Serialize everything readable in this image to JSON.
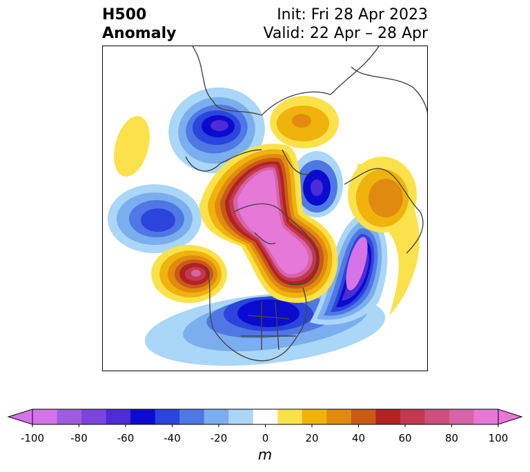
{
  "title": {
    "left_line1": "H500",
    "left_line2": "Anomaly",
    "right_line1": "Init: Fri 28 Apr 2023",
    "right_line2": "Valid: 22 Apr – 28 Apr"
  },
  "colorbar": {
    "units": "m",
    "extend": "both",
    "tick_labels": [
      "-100",
      "-80",
      "-60",
      "-40",
      "-20",
      "0",
      "20",
      "40",
      "60",
      "80",
      "100"
    ],
    "levels": [
      -100,
      -90,
      -80,
      -70,
      -60,
      -50,
      -40,
      -30,
      -20,
      -10,
      10,
      20,
      30,
      40,
      50,
      60,
      70,
      80,
      90,
      100
    ],
    "colors": [
      "#d574e8",
      "#a05ce0",
      "#7b45dc",
      "#4d2bd6",
      "#0b0bd0",
      "#2b44dc",
      "#4f78e4",
      "#7aaeef",
      "#aad6f8",
      "#ffffff",
      "#fce24a",
      "#f0b30c",
      "#e08b0f",
      "#c85a16",
      "#b22222",
      "#c23a50",
      "#cd4f7c",
      "#d763a8",
      "#e678d8"
    ],
    "under_color": "#d574e8",
    "over_color": "#e678d8"
  },
  "map": {
    "projection": "north-polar-stereographic",
    "region": "North America / Arctic"
  }
}
